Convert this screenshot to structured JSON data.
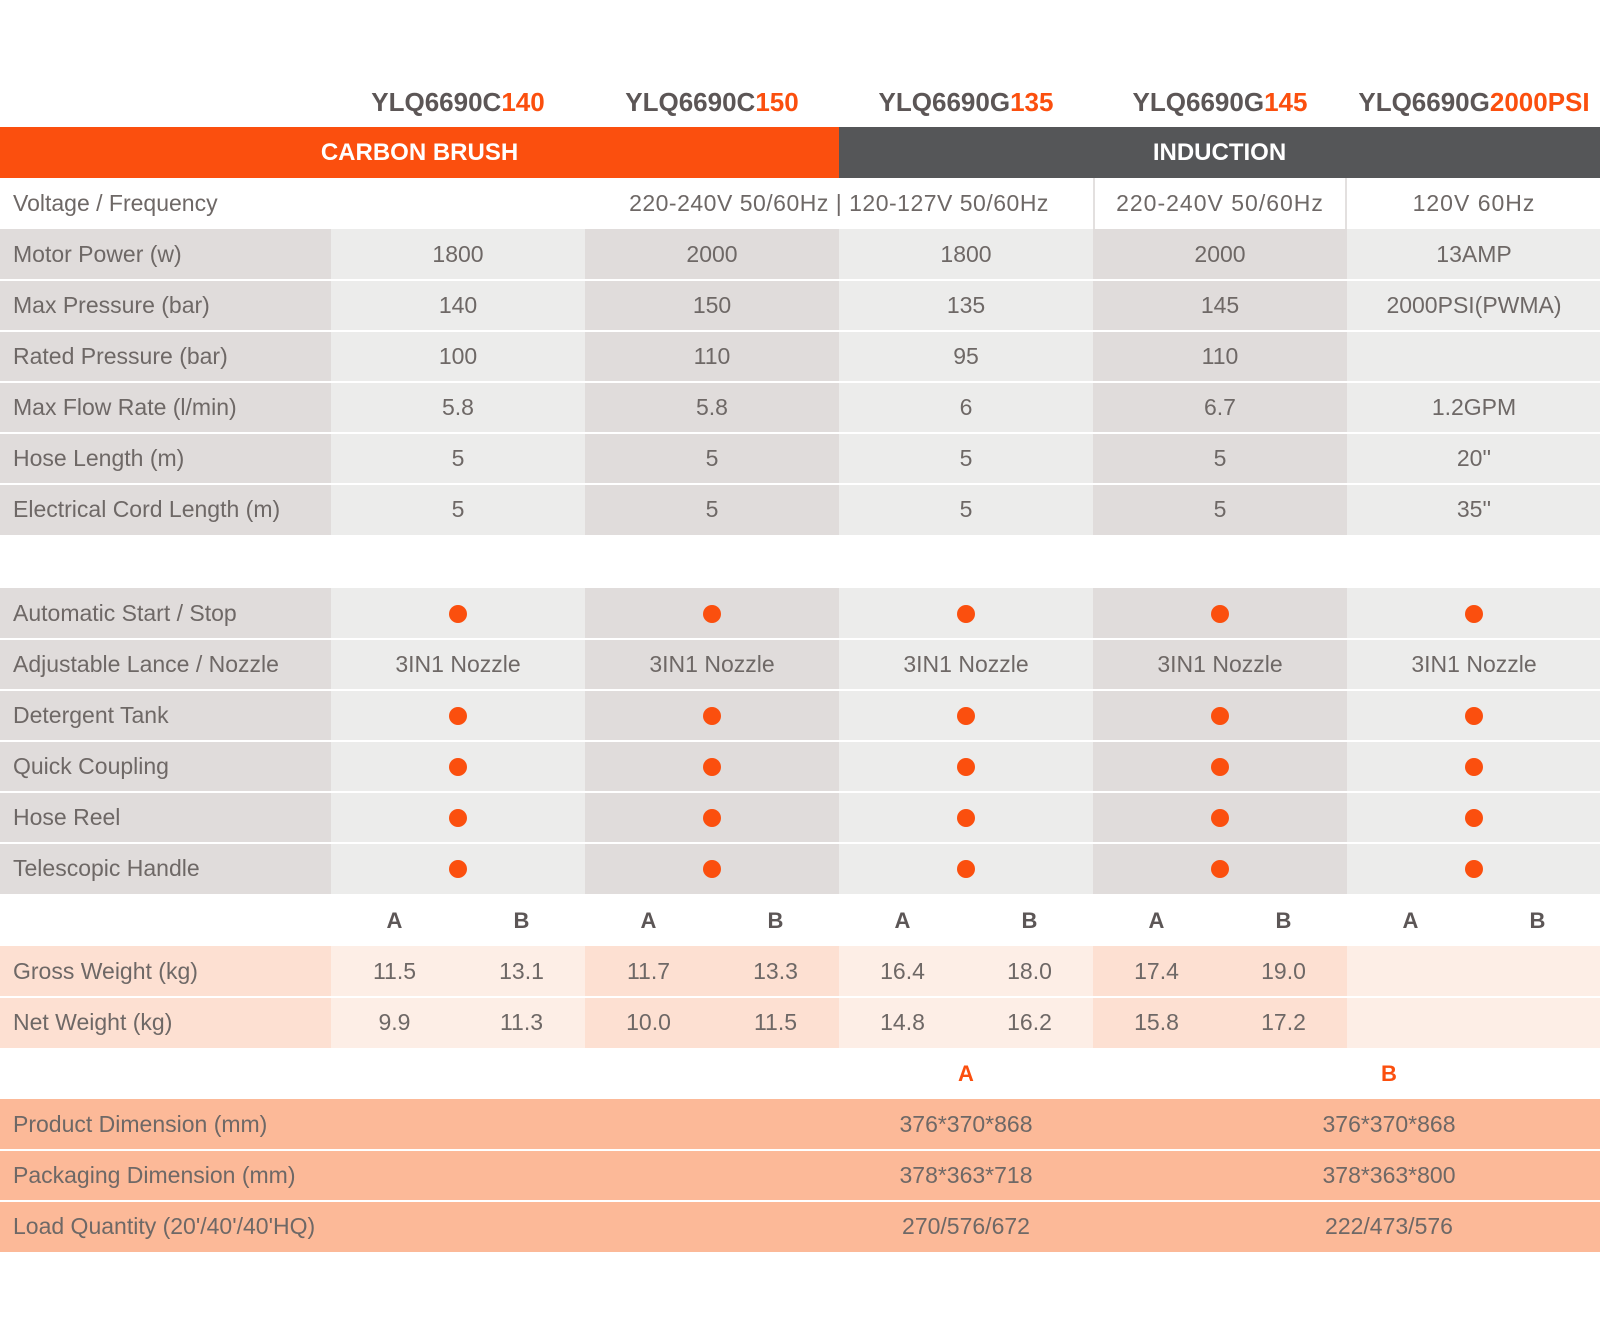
{
  "colors": {
    "accent": "#fb4f0e",
    "dark": "#555658",
    "dim_rows": "#fcb998"
  },
  "models": [
    {
      "prefix": "YLQ6690C",
      "suffix": "140"
    },
    {
      "prefix": "YLQ6690C",
      "suffix": "150"
    },
    {
      "prefix": "YLQ6690G",
      "suffix": "135"
    },
    {
      "prefix": "YLQ6690G",
      "suffix": "145"
    },
    {
      "prefix": "YLQ6690G",
      "suffix": "2000PSI"
    }
  ],
  "groups": {
    "carbon": "CARBON BRUSH",
    "induction": "INDUCTION"
  },
  "voltage": {
    "label": "Voltage / Frequency",
    "v1": "220-240V 50/60Hz | 120-127V 50/60Hz",
    "v2": "220-240V 50/60Hz",
    "v3": "120V 60Hz"
  },
  "specs": [
    {
      "label": "Motor Power (w)",
      "values": [
        "1800",
        "2000",
        "1800",
        "2000",
        "13AMP"
      ]
    },
    {
      "label": "Max Pressure (bar)",
      "values": [
        "140",
        "150",
        "135",
        "145",
        "2000PSI(PWMA)"
      ]
    },
    {
      "label": "Rated Pressure (bar)",
      "values": [
        "100",
        "110",
        "95",
        "110",
        ""
      ]
    },
    {
      "label": "Max Flow Rate (l/min)",
      "values": [
        "5.8",
        "5.8",
        "6",
        "6.7",
        "1.2GPM"
      ]
    },
    {
      "label": "Hose Length (m)",
      "values": [
        "5",
        "5",
        "5",
        "5",
        "20''"
      ]
    },
    {
      "label": "Electrical Cord Length (m)",
      "values": [
        "5",
        "5",
        "5",
        "5",
        "35''"
      ]
    }
  ],
  "features": [
    {
      "label": "Automatic Start / Stop",
      "value": ""
    },
    {
      "label": "Adjustable Lance / Nozzle",
      "value": "3IN1 Nozzle"
    },
    {
      "label": "Detergent Tank",
      "value": ""
    },
    {
      "label": "Quick Coupling",
      "value": ""
    },
    {
      "label": "Hose Reel",
      "value": ""
    },
    {
      "label": "Telescopic Handle",
      "value": ""
    }
  ],
  "ab": {
    "a": "A",
    "b": "B"
  },
  "weights": [
    {
      "label": "Gross Weight (kg)",
      "values": [
        "11.5",
        "13.1",
        "11.7",
        "13.3",
        "16.4",
        "18.0",
        "17.4",
        "19.0",
        "",
        ""
      ]
    },
    {
      "label": "Net Weight (kg)",
      "values": [
        "9.9",
        "11.3",
        "10.0",
        "11.5",
        "14.8",
        "16.2",
        "15.8",
        "17.2",
        "",
        ""
      ]
    }
  ],
  "dims": [
    {
      "label": "Product Dimension (mm)",
      "a": "376*370*868",
      "b": "376*370*868"
    },
    {
      "label": "Packaging Dimension (mm)",
      "a": "378*363*718",
      "b": "378*363*800"
    },
    {
      "label": "Load Quantity (20'/40'/40'HQ)",
      "a": "270/576/672",
      "b": "222/473/576"
    }
  ]
}
